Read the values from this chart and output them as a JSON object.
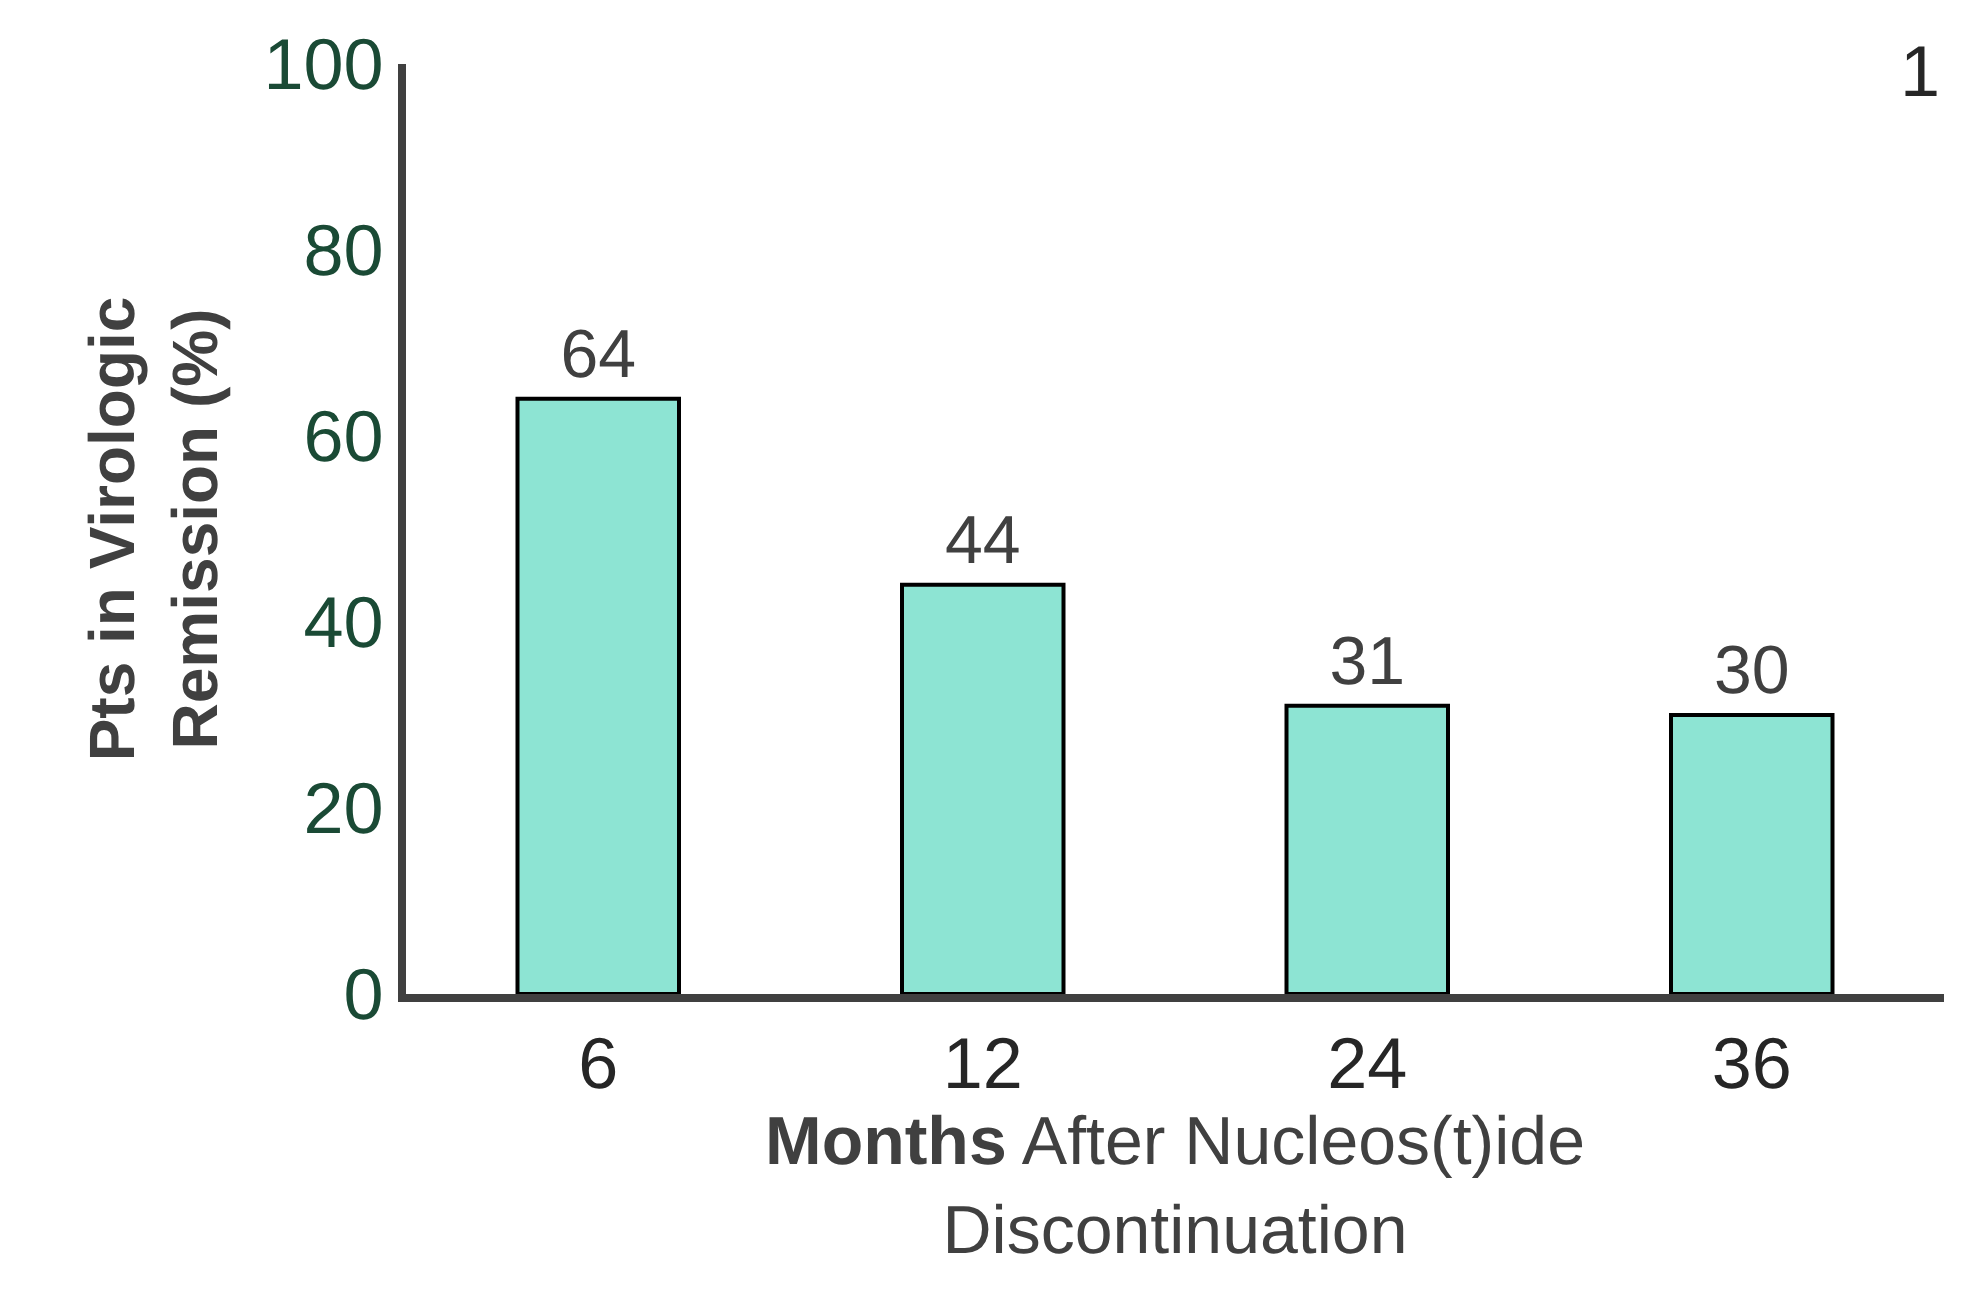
{
  "chart_data": {
    "type": "bar",
    "categories": [
      "6",
      "12",
      "24",
      "36"
    ],
    "values": [
      64,
      44,
      31,
      30
    ],
    "color": "#8de4d3",
    "data_labels": true,
    "ylim": [
      0,
      100
    ],
    "yticks": [
      0,
      20,
      40,
      60,
      80,
      100
    ],
    "xlabel": "Months After Nucleos(t)ide\nDiscontinuation",
    "ylabel": "Pts in Virologic\nRemission (%)",
    "annotations": [
      "1"
    ]
  }
}
